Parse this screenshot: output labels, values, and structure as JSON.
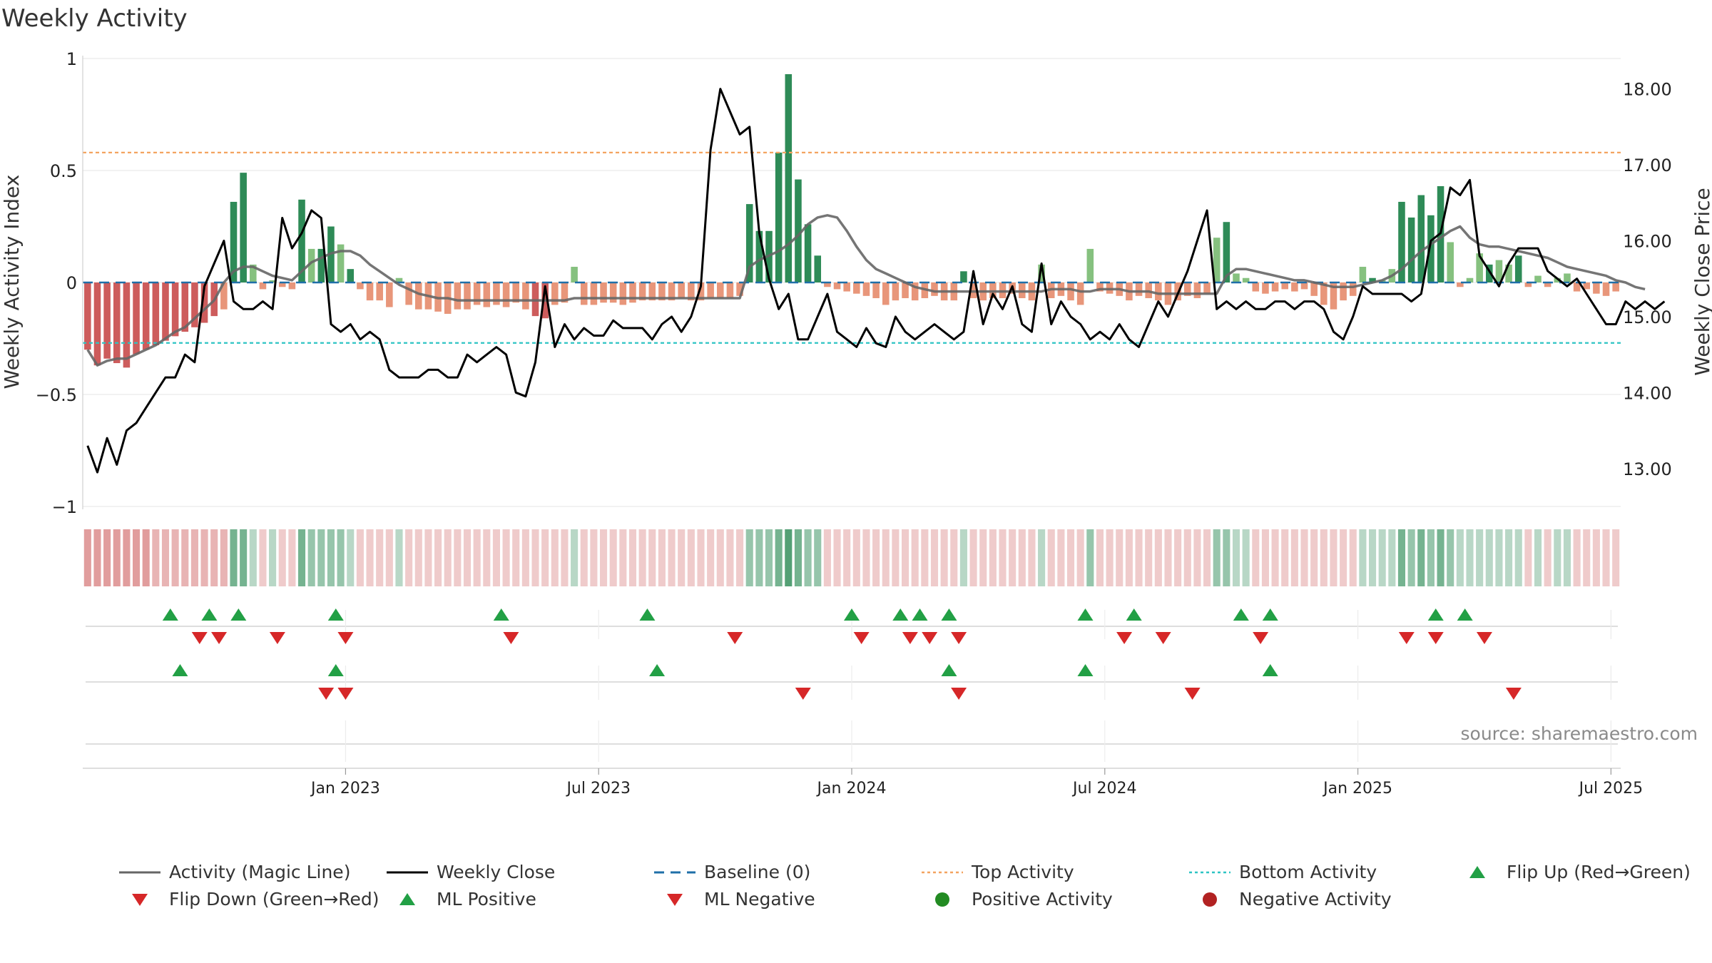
{
  "title": "Weekly Activity",
  "source": "source: sharemaestro.com",
  "colors": {
    "pos_dark": "#2e8b57",
    "pos_light": "#86c17f",
    "neg_dark": "#cd5c5c",
    "neg_light": "#e8967a",
    "magic": "#666666",
    "close": "#000000",
    "baseline": "#1f6fa8",
    "top": "#f4a460",
    "bottom": "#2ec4c4",
    "flip_up": "#22a045",
    "flip_down": "#d62728",
    "pos_dot": "#228b22",
    "neg_dot": "#b22222"
  },
  "chart_data": {
    "type": "bar",
    "title": "Weekly Activity",
    "ylabel_left": "Weekly Activity Index",
    "ylabel_right": "Weekly Close Price",
    "ylim_left": [
      -1,
      1
    ],
    "ylim_right": [
      12.5,
      18.4
    ],
    "left_ticks": [
      {
        "v": 1,
        "label": "1"
      },
      {
        "v": 0.5,
        "label": "0.5"
      },
      {
        "v": 0,
        "label": "0"
      },
      {
        "v": -0.5,
        "label": "−0.5"
      },
      {
        "v": -1,
        "label": "−1"
      }
    ],
    "right_ticks": [
      {
        "v": 18,
        "label": "18.00"
      },
      {
        "v": 17,
        "label": "17.00"
      },
      {
        "v": 16,
        "label": "16.00"
      },
      {
        "v": 15,
        "label": "15.00"
      },
      {
        "v": 14,
        "label": "14.00"
      },
      {
        "v": 13,
        "label": "13.00"
      }
    ],
    "x_ticks": [
      {
        "week": 30,
        "label": "Jan 2023"
      },
      {
        "week": 56,
        "label": "Jul 2023"
      },
      {
        "week": 82,
        "label": "Jan 2024"
      },
      {
        "week": 108,
        "label": "Jul 2024"
      },
      {
        "week": 134,
        "label": "Jan 2025"
      },
      {
        "week": 160,
        "label": "Jul 2025"
      }
    ],
    "top_activity": 0.58,
    "bottom_activity": -0.27,
    "baseline": 0,
    "n_weeks": 158,
    "activity_index": [
      -0.3,
      -0.37,
      -0.34,
      -0.36,
      -0.38,
      -0.32,
      -0.3,
      -0.28,
      -0.26,
      -0.24,
      -0.22,
      -0.2,
      -0.18,
      -0.15,
      -0.12,
      0.36,
      0.49,
      0.08,
      -0.03,
      0.01,
      -0.02,
      -0.03,
      0.37,
      0.15,
      0.15,
      0.25,
      0.17,
      0.06,
      -0.03,
      -0.08,
      -0.08,
      -0.11,
      0.02,
      -0.1,
      -0.12,
      -0.12,
      -0.13,
      -0.14,
      -0.12,
      -0.12,
      -0.1,
      -0.11,
      -0.1,
      -0.11,
      -0.09,
      -0.12,
      -0.15,
      -0.16,
      -0.1,
      -0.09,
      0.07,
      -0.1,
      -0.1,
      -0.09,
      -0.09,
      -0.1,
      -0.09,
      -0.08,
      -0.08,
      -0.08,
      -0.08,
      -0.07,
      -0.08,
      -0.08,
      -0.07,
      -0.07,
      -0.07,
      -0.06,
      0.35,
      0.23,
      0.23,
      0.58,
      0.93,
      0.46,
      0.26,
      0.12,
      -0.02,
      -0.03,
      -0.04,
      -0.05,
      -0.06,
      -0.07,
      -0.1,
      -0.08,
      -0.07,
      -0.08,
      -0.07,
      -0.06,
      -0.08,
      -0.08,
      0.05,
      -0.07,
      -0.08,
      -0.07,
      -0.07,
      -0.05,
      -0.07,
      -0.08,
      0.08,
      -0.07,
      -0.06,
      -0.08,
      -0.1,
      0.15,
      -0.04,
      -0.05,
      -0.06,
      -0.08,
      -0.06,
      -0.07,
      -0.08,
      -0.1,
      -0.08,
      -0.06,
      -0.07,
      -0.05,
      0.2,
      0.27,
      0.04,
      0.02,
      -0.04,
      -0.05,
      -0.04,
      -0.03,
      -0.04,
      -0.03,
      -0.06,
      -0.1,
      -0.12,
      -0.08,
      -0.06,
      0.07,
      0.02,
      0.01,
      0.06,
      0.36,
      0.29,
      0.39,
      0.3,
      0.43,
      0.18,
      -0.02,
      0.02,
      0.13,
      0.08,
      0.1,
      0.08,
      0.12,
      -0.02,
      0.03,
      -0.02,
      0.02,
      0.04,
      -0.04,
      -0.03,
      -0.05,
      -0.06,
      -0.04
    ],
    "magic_line": [
      -0.3,
      -0.37,
      -0.35,
      -0.34,
      -0.34,
      -0.32,
      -0.3,
      -0.28,
      -0.25,
      -0.22,
      -0.2,
      -0.16,
      -0.12,
      -0.08,
      0.0,
      0.05,
      0.07,
      0.07,
      0.05,
      0.03,
      0.02,
      0.01,
      0.05,
      0.09,
      0.11,
      0.13,
      0.14,
      0.14,
      0.12,
      0.08,
      0.05,
      0.02,
      -0.01,
      -0.03,
      -0.05,
      -0.06,
      -0.07,
      -0.07,
      -0.08,
      -0.08,
      -0.08,
      -0.08,
      -0.08,
      -0.08,
      -0.08,
      -0.08,
      -0.08,
      -0.08,
      -0.08,
      -0.08,
      -0.07,
      -0.07,
      -0.07,
      -0.07,
      -0.07,
      -0.07,
      -0.07,
      -0.07,
      -0.07,
      -0.07,
      -0.07,
      -0.07,
      -0.07,
      -0.07,
      -0.07,
      -0.07,
      -0.07,
      -0.07,
      0.07,
      0.1,
      0.12,
      0.14,
      0.17,
      0.21,
      0.26,
      0.29,
      0.3,
      0.29,
      0.23,
      0.16,
      0.1,
      0.06,
      0.04,
      0.02,
      0.0,
      -0.02,
      -0.03,
      -0.04,
      -0.04,
      -0.04,
      -0.04,
      -0.04,
      -0.04,
      -0.04,
      -0.04,
      -0.04,
      -0.04,
      -0.04,
      -0.04,
      -0.03,
      -0.03,
      -0.03,
      -0.04,
      -0.04,
      -0.03,
      -0.03,
      -0.03,
      -0.04,
      -0.04,
      -0.04,
      -0.05,
      -0.05,
      -0.05,
      -0.05,
      -0.05,
      -0.05,
      -0.05,
      0.03,
      0.06,
      0.06,
      0.05,
      0.04,
      0.03,
      0.02,
      0.01,
      0.01,
      0.0,
      -0.01,
      -0.02,
      -0.02,
      -0.02,
      -0.01,
      0.0,
      0.01,
      0.03,
      0.06,
      0.1,
      0.14,
      0.17,
      0.2,
      0.23,
      0.25,
      0.2,
      0.17,
      0.16,
      0.16,
      0.15,
      0.14,
      0.13,
      0.12,
      0.11,
      0.09,
      0.07,
      0.06,
      0.05,
      0.04,
      0.03,
      0.01,
      0.0,
      -0.02,
      -0.03
    ],
    "weekly_close": [
      13.3,
      12.95,
      13.4,
      13.05,
      13.5,
      13.6,
      13.8,
      14.0,
      14.2,
      14.2,
      14.5,
      14.4,
      15.4,
      15.7,
      16.0,
      15.2,
      15.1,
      15.1,
      15.2,
      15.1,
      16.3,
      15.9,
      16.1,
      16.4,
      16.3,
      14.9,
      14.8,
      14.9,
      14.7,
      14.8,
      14.7,
      14.3,
      14.2,
      14.2,
      14.2,
      14.3,
      14.3,
      14.2,
      14.2,
      14.5,
      14.4,
      14.5,
      14.6,
      14.5,
      14.0,
      13.95,
      14.4,
      15.4,
      14.6,
      14.9,
      14.7,
      14.85,
      14.75,
      14.75,
      14.95,
      14.85,
      14.85,
      14.85,
      14.7,
      14.9,
      15.0,
      14.8,
      15.0,
      15.4,
      17.2,
      18.0,
      17.7,
      17.4,
      17.5,
      16.1,
      15.5,
      15.1,
      15.3,
      14.7,
      14.7,
      15.0,
      15.3,
      14.8,
      14.7,
      14.6,
      14.85,
      14.65,
      14.6,
      15.0,
      14.8,
      14.7,
      14.8,
      14.9,
      14.8,
      14.7,
      14.8,
      15.6,
      14.9,
      15.3,
      15.1,
      15.4,
      14.9,
      14.8,
      15.7,
      14.9,
      15.2,
      15.0,
      14.9,
      14.7,
      14.8,
      14.7,
      14.9,
      14.7,
      14.6,
      14.9,
      15.2,
      15.0,
      15.3,
      15.6,
      16.0,
      16.4,
      15.1,
      15.2,
      15.1,
      15.2,
      15.1,
      15.1,
      15.2,
      15.2,
      15.1,
      15.2,
      15.2,
      15.1,
      14.8,
      14.7,
      15.0,
      15.4,
      15.3,
      15.3,
      15.3,
      15.3,
      15.2,
      15.3,
      16.0,
      16.1,
      16.7,
      16.6,
      16.8,
      15.8,
      15.6,
      15.4,
      15.7,
      15.9,
      15.9,
      15.9,
      15.6,
      15.5,
      15.4,
      15.5,
      15.3,
      15.1,
      14.9,
      14.9,
      15.2,
      15.1,
      15.2,
      15.1,
      15.2
    ],
    "heat_strip": [
      -3,
      -3,
      -3,
      -3,
      -3,
      -3,
      -3,
      -2,
      -2,
      -2,
      -2,
      -2,
      -2,
      -2,
      -2,
      3,
      3,
      1,
      -1,
      1,
      -1,
      -1,
      3,
      2,
      2,
      2,
      2,
      1,
      -1,
      -1,
      -1,
      -1,
      1,
      -1,
      -1,
      -1,
      -1,
      -1,
      -1,
      -1,
      -1,
      -1,
      -1,
      -1,
      -1,
      -1,
      -1,
      -1,
      -1,
      -1,
      1,
      -1,
      -1,
      -1,
      -1,
      -1,
      -1,
      -1,
      -1,
      -1,
      -1,
      -1,
      -1,
      -1,
      -1,
      -1,
      -1,
      -1,
      2,
      2,
      2,
      3,
      4,
      3,
      2,
      2,
      -1,
      -1,
      -1,
      -1,
      -1,
      -1,
      -1,
      -1,
      -1,
      -1,
      -1,
      -1,
      -1,
      -1,
      1,
      -1,
      -1,
      -1,
      -1,
      -1,
      -1,
      -1,
      1,
      -1,
      -1,
      -1,
      -1,
      2,
      -1,
      -1,
      -1,
      -1,
      -1,
      -1,
      -1,
      -1,
      -1,
      -1,
      -1,
      -1,
      2,
      2,
      1,
      1,
      -1,
      -1,
      -1,
      -1,
      -1,
      -1,
      -1,
      -1,
      -1,
      -1,
      -1,
      1,
      1,
      1,
      1,
      3,
      2,
      3,
      2,
      3,
      2,
      1,
      1,
      1,
      1,
      1,
      1,
      1,
      -1,
      1,
      -1,
      1,
      1,
      -1,
      -1,
      -1,
      -1,
      -1
    ],
    "signal_rows": [
      {
        "row": "flip_up",
        "weeks": [
          12,
          16,
          19,
          29,
          46,
          61,
          82,
          87,
          89,
          92,
          106,
          111,
          122,
          125,
          142,
          145
        ]
      },
      {
        "row": "flip_down",
        "weeks": [
          15,
          17,
          23,
          30,
          47,
          70,
          83,
          88,
          90,
          93,
          110,
          114,
          124,
          139,
          142,
          147
        ]
      },
      {
        "row": "ml_positive",
        "weeks": [
          13,
          29,
          62,
          92,
          106,
          125
        ]
      },
      {
        "row": "ml_negative",
        "weeks": [
          28,
          30,
          77,
          93,
          117,
          150
        ]
      }
    ]
  },
  "legend": [
    {
      "key": "magic",
      "label": "Activity (Magic Line)"
    },
    {
      "key": "close",
      "label": "Weekly Close"
    },
    {
      "key": "baseline",
      "label": "Baseline (0)"
    },
    {
      "key": "top",
      "label": "Top Activity"
    },
    {
      "key": "bottom",
      "label": "Bottom Activity"
    },
    {
      "key": "flip_up",
      "label": "Flip Up (Red→Green)"
    },
    {
      "key": "flip_down",
      "label": "Flip Down (Green→Red)"
    },
    {
      "key": "ml_pos",
      "label": "ML Positive"
    },
    {
      "key": "ml_neg",
      "label": "ML Negative"
    },
    {
      "key": "pos_dot",
      "label": "Positive Activity"
    },
    {
      "key": "neg_dot",
      "label": "Negative Activity"
    }
  ]
}
